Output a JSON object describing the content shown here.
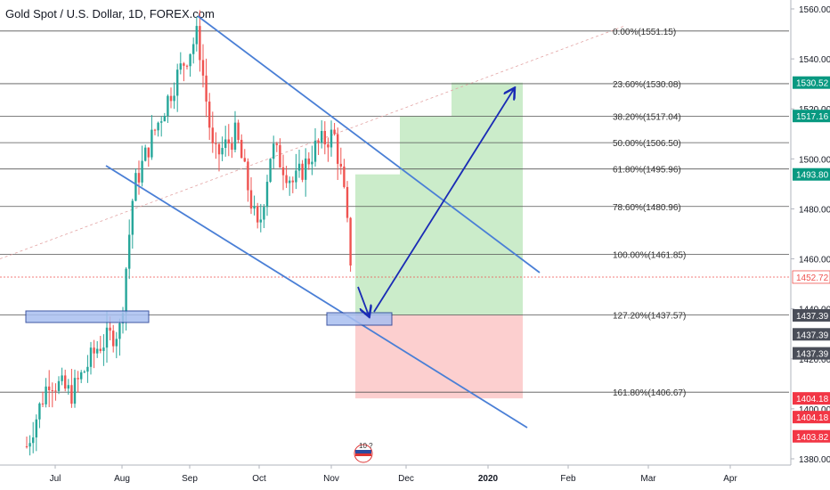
{
  "header": {
    "title": "Gold Spot / U.S. Dollar, 1D, FOREX.com"
  },
  "colors": {
    "up": "#26a69a",
    "down": "#ef5350",
    "channel": "#4a7fd6",
    "arrow": "#1a2bb5",
    "fib_line": "#555555",
    "target_zone": "#b9e6b8",
    "stop_zone": "#fbc3c3",
    "box_fill": "#a9bff0",
    "box_stroke": "#1f3a93",
    "current_price": "#ef5350",
    "badge_green": "#089981",
    "badge_red": "#f23645",
    "badge_dark": "#4a4e59"
  },
  "chart_data": {
    "type": "candlestick",
    "title": "Gold Spot / U.S. Dollar, 1D, FOREX.com",
    "x_ticks": [
      "Jul",
      "Aug",
      "Sep",
      "Oct",
      "Nov",
      "Dec",
      "2020",
      "Feb",
      "Mar",
      "Apr"
    ],
    "y_ticks": [
      1380,
      1400,
      1420,
      1440,
      1460,
      1480,
      1500,
      1520,
      1540,
      1560
    ],
    "ylim": [
      1378,
      1562
    ],
    "fib_levels": [
      {
        "label": "0.00%(1551.15)",
        "price": 1551.15
      },
      {
        "label": "23.60%(1530.08)",
        "price": 1530.08
      },
      {
        "label": "38.20%(1517.04)",
        "price": 1517.04
      },
      {
        "label": "50.00%(1506.50)",
        "price": 1506.5
      },
      {
        "label": "61.80%(1495.96)",
        "price": 1495.96
      },
      {
        "label": "78.60%(1480.96)",
        "price": 1480.96
      },
      {
        "label": "100.00%(1461.85)",
        "price": 1461.85
      },
      {
        "label": "127.20%(1437.57)",
        "price": 1437.57
      },
      {
        "label": "161.80%(1406.67)",
        "price": 1406.67
      }
    ],
    "price_badges": [
      {
        "text": "1530.52",
        "price": 1530.52,
        "kind": "green"
      },
      {
        "text": "1517.16",
        "price": 1517.16,
        "kind": "green"
      },
      {
        "text": "1493.80",
        "price": 1493.8,
        "kind": "green"
      },
      {
        "text": "1452.72",
        "price": 1452.72,
        "kind": "current"
      },
      {
        "text": "1437.39",
        "price": 1437.39,
        "kind": "dark"
      },
      {
        "text": "1437.39",
        "price": 1429.8,
        "kind": "dark"
      },
      {
        "text": "1437.39",
        "price": 1422.2,
        "kind": "dark"
      },
      {
        "text": "1404.18",
        "price": 1404.18,
        "kind": "red"
      },
      {
        "text": "1404.18",
        "price": 1396.7,
        "kind": "red"
      },
      {
        "text": "1403.82",
        "price": 1389.0,
        "kind": "red"
      }
    ],
    "current_price": 1452.72,
    "event_badge": "10 ?",
    "key_prices": {
      "entry": 1437.57,
      "stop": 1404.18,
      "target1": 1493.8,
      "target2": 1517.16,
      "target3": 1530.52
    }
  }
}
